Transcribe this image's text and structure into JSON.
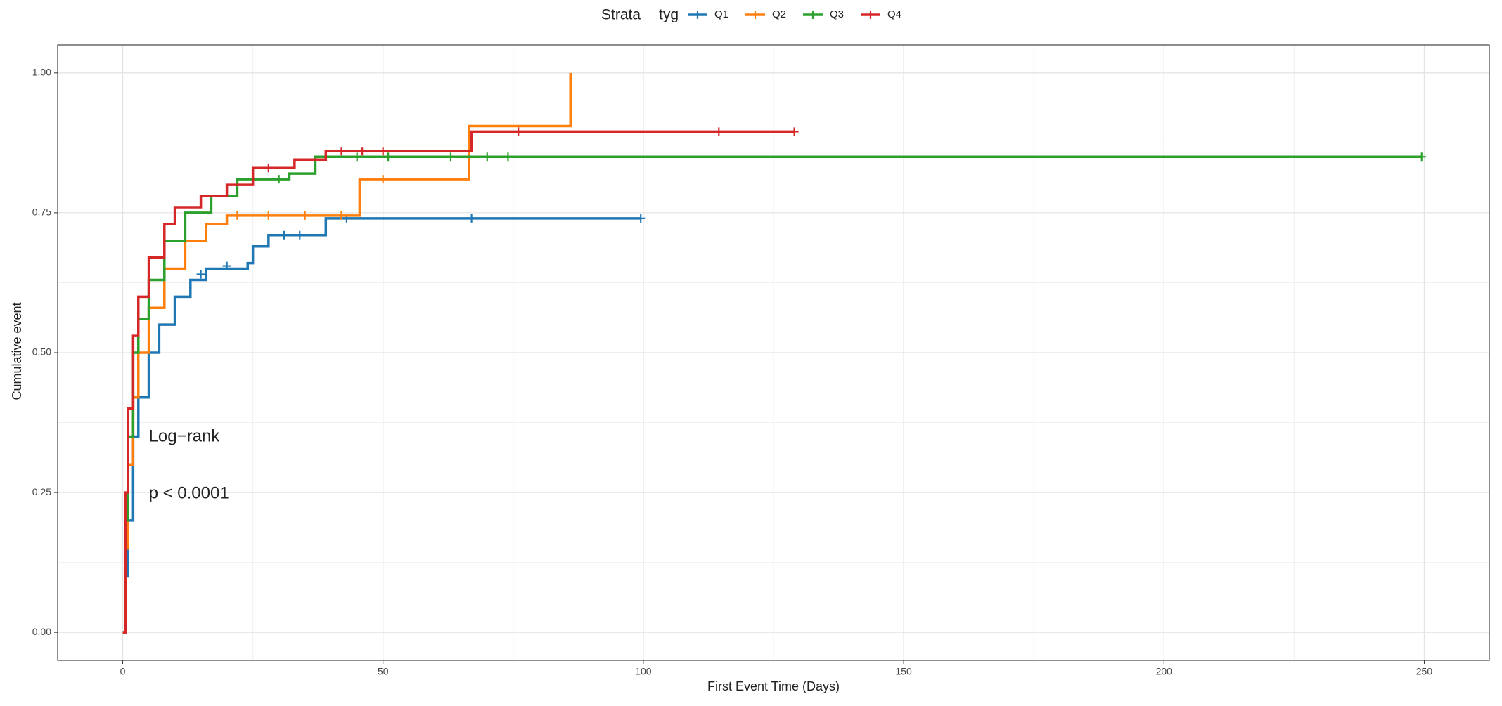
{
  "chart_data": {
    "type": "step",
    "legend_title": "Strata",
    "legend_subtitle": "tyg",
    "legend_position": "top",
    "xlabel": "First Event Time (Days)",
    "ylabel": "Cumulative event",
    "annotations": [
      "Log−rank",
      "p < 0.0001"
    ],
    "xlim": [
      -12.5,
      262.5
    ],
    "xticks": [
      0,
      50,
      100,
      150,
      200,
      250
    ],
    "ylim": [
      -0.05,
      1.05
    ],
    "yticks": [
      {
        "value": 0,
        "label": "0.00"
      },
      {
        "value": 0.25,
        "label": "0.25"
      },
      {
        "value": 0.5,
        "label": "0.50"
      },
      {
        "value": 0.75,
        "label": "0.75"
      },
      {
        "value": 1,
        "label": "1.00"
      }
    ],
    "grid": true,
    "series": [
      {
        "name": "Q1",
        "color": "#1f77b4",
        "x": [
          0,
          0.5,
          1,
          2,
          3,
          5,
          7,
          10,
          13,
          16,
          24,
          25,
          28,
          39,
          99.5
        ],
        "values": [
          0,
          0.1,
          0.2,
          0.35,
          0.42,
          0.5,
          0.55,
          0.6,
          0.63,
          0.65,
          0.66,
          0.69,
          0.71,
          0.74,
          0.74
        ],
        "censored_x": [
          15,
          20,
          31,
          34,
          43,
          67,
          99.5
        ],
        "censored_values": [
          0.64,
          0.655,
          0.71,
          0.71,
          0.74,
          0.74,
          0.74
        ]
      },
      {
        "name": "Q2",
        "color": "#ff7f0e",
        "x": [
          0,
          0.5,
          1,
          2,
          3,
          5,
          8,
          12,
          16,
          20,
          45.5,
          66.5,
          86
        ],
        "values": [
          0,
          0.15,
          0.3,
          0.42,
          0.5,
          0.58,
          0.65,
          0.7,
          0.73,
          0.745,
          0.81,
          0.905,
          1.0
        ],
        "censored_x": [
          22,
          28,
          35,
          42,
          50
        ],
        "censored_values": [
          0.745,
          0.745,
          0.745,
          0.745,
          0.81
        ]
      },
      {
        "name": "Q3",
        "color": "#2ca02c",
        "x": [
          0,
          0.5,
          1,
          2,
          3,
          5,
          8,
          12,
          17,
          22,
          32,
          37,
          249.5
        ],
        "values": [
          0,
          0.2,
          0.35,
          0.5,
          0.56,
          0.63,
          0.7,
          0.75,
          0.78,
          0.81,
          0.82,
          0.85,
          0.85
        ],
        "censored_x": [
          25,
          30,
          45,
          51,
          63,
          70,
          74,
          249.5
        ],
        "censored_values": [
          0.81,
          0.81,
          0.85,
          0.85,
          0.85,
          0.85,
          0.85,
          0.85
        ]
      },
      {
        "name": "Q4",
        "color": "#d62728",
        "x": [
          0,
          0.5,
          1,
          2,
          3,
          5,
          8,
          10,
          15,
          20,
          25,
          33,
          39,
          67,
          129
        ],
        "values": [
          0,
          0.25,
          0.4,
          0.53,
          0.6,
          0.67,
          0.73,
          0.76,
          0.78,
          0.8,
          0.83,
          0.845,
          0.86,
          0.895,
          0.895
        ],
        "censored_x": [
          28,
          42,
          46,
          50,
          76,
          114.5,
          129
        ],
        "censored_values": [
          0.83,
          0.86,
          0.86,
          0.86,
          0.895,
          0.895,
          0.895
        ]
      }
    ]
  }
}
